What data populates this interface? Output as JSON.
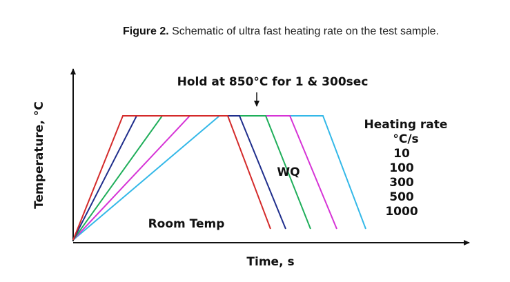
{
  "caption": {
    "label": "Figure 2.",
    "text": "Schematic of ultra fast heating rate on the test sample."
  },
  "diagram": {
    "hold_label": "Hold at 850°C for 1 & 300sec",
    "quench_label": "WQ",
    "start_label": "Room Temp",
    "x_axis_label": "Time, s",
    "y_axis_label": "Temperature, °C",
    "legend_title": [
      "Heating rate",
      "°C/s"
    ],
    "legend": [
      {
        "label": "10",
        "color": "#33b8e8"
      },
      {
        "label": "100",
        "color": "#d633d6"
      },
      {
        "label": "300",
        "color": "#1fae5a"
      },
      {
        "label": "500",
        "color": "#1f2e8c"
      },
      {
        "label": "1000",
        "color": "#d42a2a"
      }
    ]
  }
}
